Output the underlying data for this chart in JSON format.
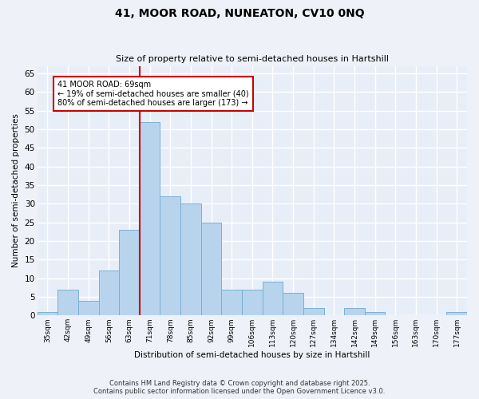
{
  "title1": "41, MOOR ROAD, NUNEATON, CV10 0NQ",
  "title2": "Size of property relative to semi-detached houses in Hartshill",
  "xlabel": "Distribution of semi-detached houses by size in Hartshill",
  "ylabel": "Number of semi-detached properties",
  "bar_labels": [
    "35sqm",
    "42sqm",
    "49sqm",
    "56sqm",
    "63sqm",
    "71sqm",
    "78sqm",
    "85sqm",
    "92sqm",
    "99sqm",
    "106sqm",
    "113sqm",
    "120sqm",
    "127sqm",
    "134sqm",
    "142sqm",
    "149sqm",
    "156sqm",
    "163sqm",
    "170sqm",
    "177sqm"
  ],
  "bar_values": [
    1,
    7,
    4,
    12,
    23,
    52,
    32,
    30,
    25,
    7,
    7,
    9,
    6,
    2,
    0,
    2,
    1,
    0,
    0,
    0,
    1
  ],
  "bar_color": "#b8d4ed",
  "bar_edge_color": "#7aafd4",
  "vline_index": 5,
  "vline_color": "#cc0000",
  "annotation_title": "41 MOOR ROAD: 69sqm",
  "annotation_line1": "← 19% of semi-detached houses are smaller (40)",
  "annotation_line2": "80% of semi-detached houses are larger (173) →",
  "annotation_box_color": "#cc0000",
  "ylim": [
    0,
    67
  ],
  "yticks": [
    0,
    5,
    10,
    15,
    20,
    25,
    30,
    35,
    40,
    45,
    50,
    55,
    60,
    65
  ],
  "footnote1": "Contains HM Land Registry data © Crown copyright and database right 2025.",
  "footnote2": "Contains public sector information licensed under the Open Government Licence v3.0.",
  "bg_color": "#eef2f8",
  "plot_bg_color": "#e8eef8",
  "grid_color": "#ffffff"
}
